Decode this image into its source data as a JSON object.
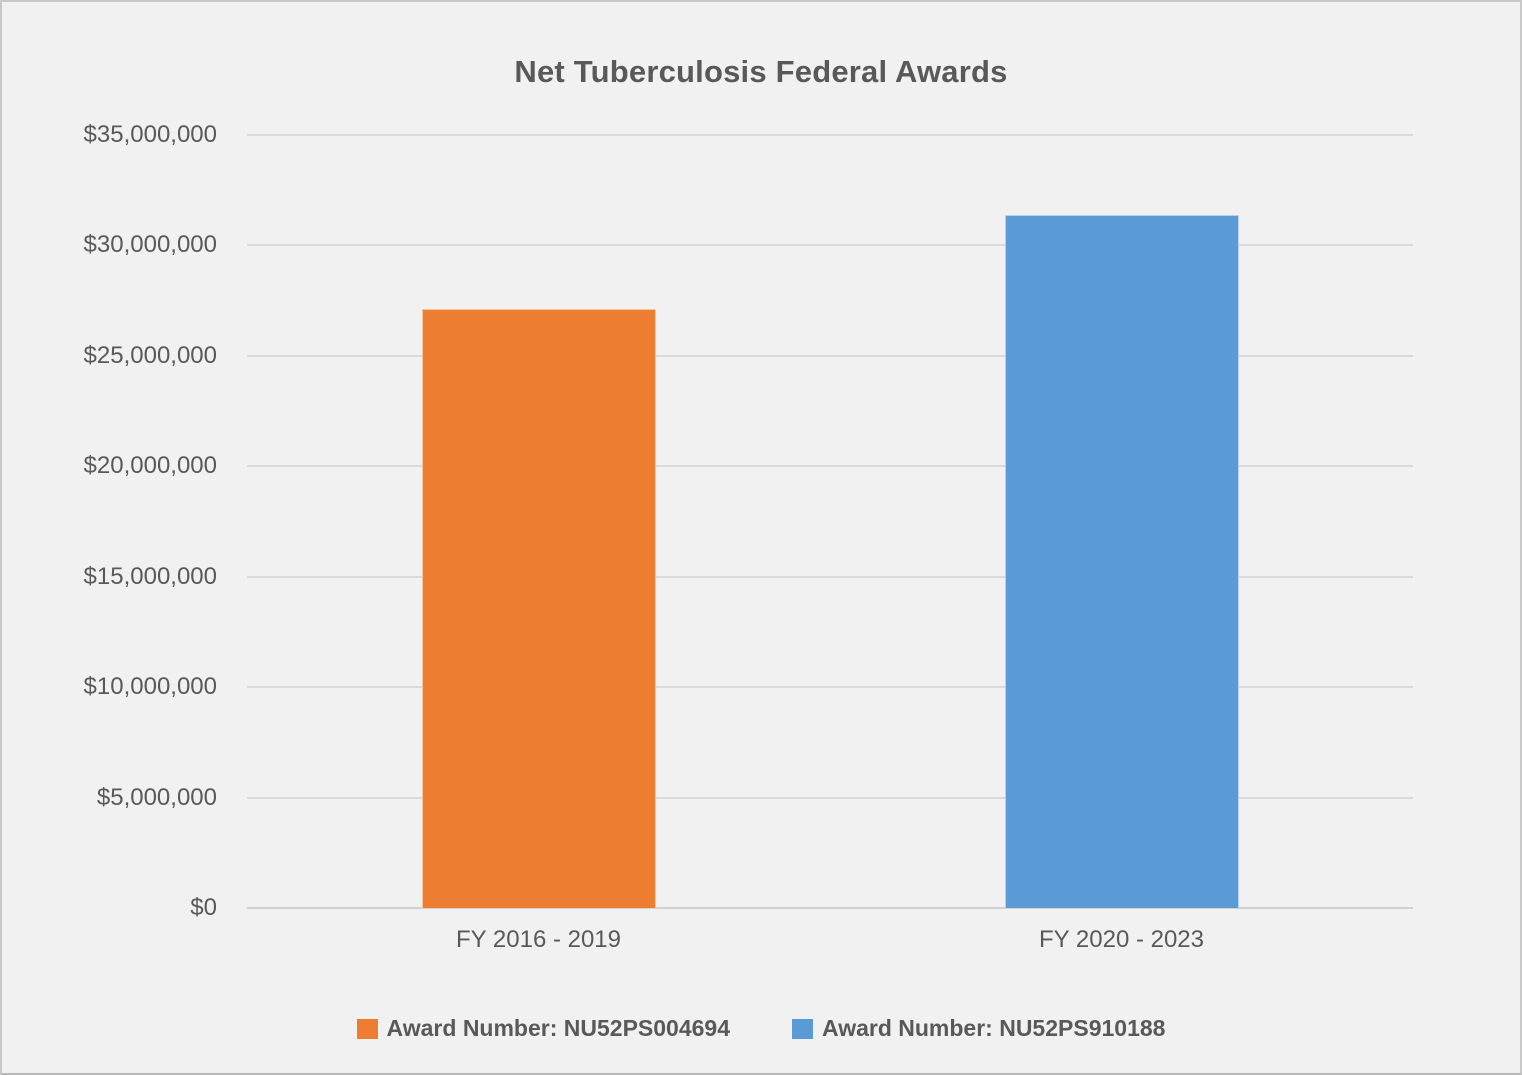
{
  "chart_data": {
    "type": "bar",
    "title": "Net Tuberculosis Federal Awards",
    "categories": [
      "FY 2016 - 2019",
      "FY 2020 - 2023"
    ],
    "series": [
      {
        "name": "Award Number: NU52PS004694",
        "color": "#ED7D31",
        "values": [
          27100000,
          null
        ]
      },
      {
        "name": "Award Number: NU52PS910188",
        "color": "#5B9BD5",
        "values": [
          null,
          31400000
        ]
      }
    ],
    "ylim": [
      0,
      35000000
    ],
    "y_ticks": [
      {
        "value": 0,
        "label": "$0"
      },
      {
        "value": 5000000,
        "label": "$5,000,000"
      },
      {
        "value": 10000000,
        "label": "$10,000,000"
      },
      {
        "value": 15000000,
        "label": "$15,000,000"
      },
      {
        "value": 20000000,
        "label": "$20,000,000"
      },
      {
        "value": 25000000,
        "label": "$25,000,000"
      },
      {
        "value": 30000000,
        "label": "$30,000,000"
      },
      {
        "value": 35000000,
        "label": "$35,000,000"
      }
    ],
    "grid": true,
    "legend_position": "bottom",
    "xlabel": "",
    "ylabel": ""
  },
  "colors": {
    "background": "#F1F1F1",
    "frame_border": "#C9C9C9",
    "text": "#595959",
    "gridline": "#D9D9D9",
    "axis_line": "#D2D2D2",
    "series_orange": "#ED7D31",
    "series_blue": "#5B9BD5"
  }
}
